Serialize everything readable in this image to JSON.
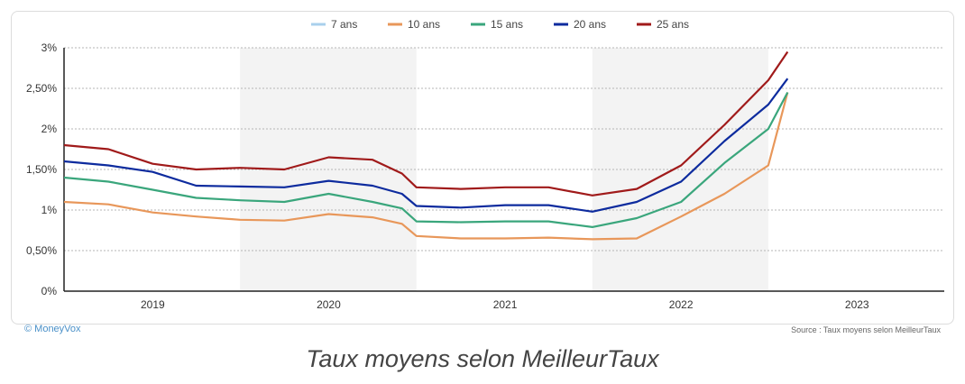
{
  "chart_data": {
    "type": "line",
    "xlabel": "",
    "ylabel": "",
    "x_ticks": [
      "2019",
      "2020",
      "2021",
      "2022",
      "2023"
    ],
    "y_ticks": [
      "0%",
      "0,50%",
      "1%",
      "1,50%",
      "2%",
      "2,50%",
      "3%"
    ],
    "ylim": [
      0,
      3
    ],
    "xlim": [
      "2018-07-01",
      "2023-07-01"
    ],
    "grid": true,
    "legend_position": "top",
    "colors": {
      "7 ans": "#a9d0ec",
      "10 ans": "#e8975a",
      "15 ans": "#3aa67c",
      "20 ans": "#0d2b9e",
      "25 ans": "#a01a1a"
    },
    "series": [
      {
        "name": "7 ans",
        "hidden": true,
        "x": [],
        "values": []
      },
      {
        "name": "10 ans",
        "x": [
          "2018-07-01",
          "2018-10-01",
          "2019-01-01",
          "2019-04-01",
          "2019-07-01",
          "2019-10-01",
          "2020-01-01",
          "2020-04-01",
          "2020-06-01",
          "2020-07-01",
          "2020-10-01",
          "2021-01-01",
          "2021-04-01",
          "2021-07-01",
          "2021-10-01",
          "2022-01-01",
          "2022-04-01",
          "2022-07-01",
          "2022-08-10"
        ],
        "values": [
          1.1,
          1.07,
          0.97,
          0.92,
          0.88,
          0.87,
          0.95,
          0.91,
          0.83,
          0.68,
          0.65,
          0.65,
          0.66,
          0.64,
          0.65,
          0.92,
          1.2,
          1.55,
          2.45
        ]
      },
      {
        "name": "15 ans",
        "x": [
          "2018-07-01",
          "2018-10-01",
          "2019-01-01",
          "2019-04-01",
          "2019-07-01",
          "2019-10-01",
          "2020-01-01",
          "2020-04-01",
          "2020-06-01",
          "2020-07-01",
          "2020-10-01",
          "2021-01-01",
          "2021-04-01",
          "2021-07-01",
          "2021-10-01",
          "2022-01-01",
          "2022-04-01",
          "2022-07-01",
          "2022-08-10"
        ],
        "values": [
          1.4,
          1.35,
          1.25,
          1.15,
          1.12,
          1.1,
          1.2,
          1.1,
          1.02,
          0.86,
          0.85,
          0.86,
          0.86,
          0.79,
          0.9,
          1.1,
          1.58,
          2.0,
          2.45
        ]
      },
      {
        "name": "20 ans",
        "x": [
          "2018-07-01",
          "2018-10-01",
          "2019-01-01",
          "2019-04-01",
          "2019-07-01",
          "2019-10-01",
          "2020-01-01",
          "2020-04-01",
          "2020-06-01",
          "2020-07-01",
          "2020-10-01",
          "2021-01-01",
          "2021-04-01",
          "2021-07-01",
          "2021-10-01",
          "2022-01-01",
          "2022-04-01",
          "2022-07-01",
          "2022-08-10"
        ],
        "values": [
          1.6,
          1.55,
          1.47,
          1.3,
          1.29,
          1.28,
          1.36,
          1.3,
          1.2,
          1.05,
          1.03,
          1.06,
          1.06,
          0.98,
          1.1,
          1.35,
          1.85,
          2.3,
          2.62
        ]
      },
      {
        "name": "25 ans",
        "x": [
          "2018-07-01",
          "2018-10-01",
          "2019-01-01",
          "2019-04-01",
          "2019-07-01",
          "2019-10-01",
          "2020-01-01",
          "2020-04-01",
          "2020-06-01",
          "2020-07-01",
          "2020-10-01",
          "2021-01-01",
          "2021-04-01",
          "2021-07-01",
          "2021-10-01",
          "2022-01-01",
          "2022-04-01",
          "2022-07-01",
          "2022-08-10"
        ],
        "values": [
          1.8,
          1.75,
          1.57,
          1.5,
          1.52,
          1.5,
          1.65,
          1.62,
          1.45,
          1.28,
          1.26,
          1.28,
          1.28,
          1.18,
          1.26,
          1.55,
          2.05,
          2.6,
          2.95
        ]
      }
    ]
  },
  "footer": {
    "brand": "© MoneyVox",
    "source": "Source : Taux moyens selon MeilleurTaux"
  },
  "caption": "Taux moyens selon MeilleurTaux"
}
